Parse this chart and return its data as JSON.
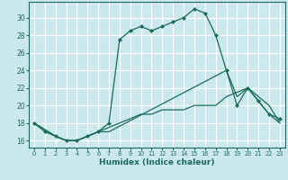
{
  "xlabel": "Humidex (Indice chaleur)",
  "bg_color": "#cce8ef",
  "grid_color": "#ffffff",
  "line_color": "#1a6b5a",
  "xlim": [
    -0.5,
    23.5
  ],
  "ylim": [
    15.2,
    31.8
  ],
  "xticks": [
    0,
    1,
    2,
    3,
    4,
    5,
    6,
    7,
    8,
    9,
    10,
    11,
    12,
    13,
    14,
    15,
    16,
    17,
    18,
    19,
    20,
    21,
    22,
    23
  ],
  "yticks": [
    16,
    18,
    20,
    22,
    24,
    26,
    28,
    30
  ],
  "line1_x": [
    0,
    1,
    2,
    3,
    4,
    5,
    6,
    7,
    8,
    9,
    10,
    11,
    12,
    13,
    14,
    15,
    16,
    17,
    18,
    19,
    20,
    21,
    22,
    23
  ],
  "line1_y": [
    18,
    17,
    16.5,
    16,
    16,
    16.5,
    17,
    18,
    27.5,
    28.5,
    29,
    28.5,
    29,
    29.5,
    30,
    31,
    30.5,
    28,
    24,
    20,
    22,
    20.5,
    19,
    18.5
  ],
  "line2_x": [
    0,
    2,
    3,
    4,
    5,
    6,
    7,
    18,
    19,
    20,
    21,
    22,
    23
  ],
  "line2_y": [
    18,
    16.5,
    16,
    16,
    16.5,
    17,
    17,
    24,
    21,
    22,
    20.5,
    19,
    18
  ],
  "line3_x": [
    0,
    2,
    3,
    4,
    5,
    6,
    7,
    8,
    9,
    10,
    11,
    12,
    13,
    14,
    15,
    16,
    17,
    18,
    19,
    20,
    21,
    22,
    23
  ],
  "line3_y": [
    18,
    16.5,
    16,
    16,
    16.5,
    17,
    17.5,
    18,
    18.5,
    19,
    19,
    19.5,
    19.5,
    19.5,
    20,
    20,
    20,
    21,
    21.5,
    22,
    21,
    20,
    18
  ]
}
